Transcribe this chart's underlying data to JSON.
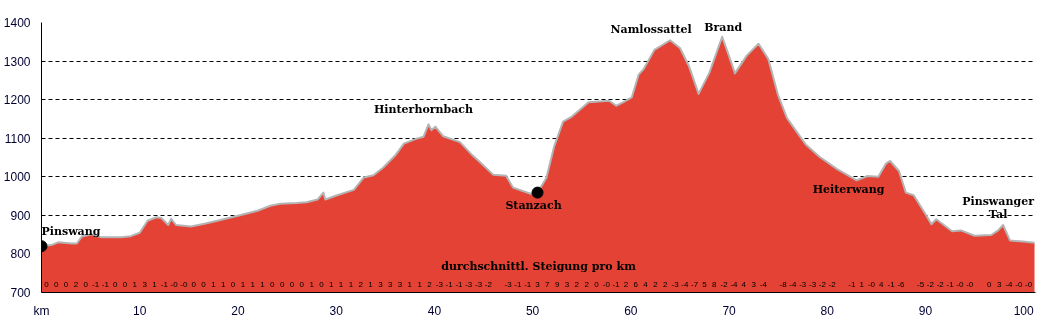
{
  "chart_data": {
    "type": "area",
    "xlim": [
      0,
      101.2
    ],
    "ylim": [
      700,
      1400
    ],
    "xticks": [
      {
        "value": 0,
        "label": "km"
      },
      10,
      20,
      30,
      40,
      50,
      60,
      70,
      80,
      90,
      100
    ],
    "yticks": [
      700,
      800,
      900,
      1000,
      1100,
      1200,
      1300,
      1400
    ],
    "grid": "y",
    "line_style": "solid",
    "series": [
      {
        "color": "#e34234",
        "x": [
          0,
          1.0,
          1.7,
          3.1,
          3.6,
          4.1,
          5.1,
          6.1,
          8.1,
          9.1,
          10.0,
          10.8,
          11.7,
          12.2,
          12.9,
          13.2,
          13.7,
          15.2,
          16.6,
          17.9,
          20.0,
          22.0,
          23.3,
          24.3,
          26.0,
          27.0,
          28.1,
          28.7,
          28.9,
          30.1,
          31.8,
          32.8,
          33.8,
          34.8,
          36.0,
          36.9,
          38.2,
          38.9,
          39.4,
          39.7,
          40.1,
          40.9,
          42.6,
          43.9,
          45.0,
          46.0,
          47.3,
          48.0,
          49.8,
          50.5,
          51.4,
          52.2,
          53.1,
          54.0,
          55.7,
          57.8,
          58.5,
          59.2,
          60.1,
          60.8,
          61.3,
          62.4,
          64.0,
          65.0,
          65.9,
          66.9,
          68.0,
          69.3,
          69.9,
          70.6,
          71.8,
          73.0,
          74.0,
          75.0,
          75.9,
          77.8,
          79.2,
          81.0,
          83.0,
          84.1,
          85.2,
          86.0,
          86.4,
          87.3,
          88.0,
          88.8,
          90.1,
          90.6,
          91.1,
          92.7,
          93.6,
          95.0,
          96.7,
          97.4,
          97.9,
          98.6,
          99.9,
          101.1
        ],
        "values": [
          820,
          823,
          830,
          827,
          827,
          845,
          851,
          843,
          843,
          846,
          855,
          886,
          895,
          893,
          875,
          891,
          875,
          871,
          878,
          886,
          899,
          912,
          925,
          930,
          932,
          934,
          941,
          959,
          941,
          952,
          966,
          998,
          1004,
          1024,
          1055,
          1086,
          1099,
          1104,
          1136,
          1121,
          1130,
          1105,
          1090,
          1055,
          1029,
          1005,
          1003,
          972,
          956,
          959,
          997,
          1079,
          1143,
          1156,
          1193,
          1197,
          1184,
          1193,
          1206,
          1265,
          1279,
          1329,
          1354,
          1334,
          1288,
          1215,
          1270,
          1363,
          1320,
          1268,
          1314,
          1345,
          1305,
          1211,
          1152,
          1084,
          1052,
          1020,
          991,
          1002,
          1000,
          1035,
          1041,
          1015,
          959,
          952,
          899,
          877,
          890,
          859,
          861,
          847,
          849,
          861,
          875,
          835,
          832,
          829
        ]
      },
      {
        "type": "scatter",
        "color": "#000000",
        "marker": "circle",
        "x": [
          0,
          50.5
        ],
        "values": [
          820,
          959
        ]
      }
    ],
    "annotations": [
      {
        "text": "Pinswang",
        "x": 0,
        "y": 820
      },
      {
        "text": "Hinterhornbach",
        "x": 39.4,
        "y": 1136
      },
      {
        "text": "Stanzach",
        "x": 50.5,
        "y": 959
      },
      {
        "text": "Namlossattel",
        "x": 64.0,
        "y": 1354
      },
      {
        "text": "Brand",
        "x": 69.3,
        "y": 1363
      },
      {
        "text": "Heiterwang",
        "x": 84.1,
        "y": 1002
      },
      {
        "text": "Pinswanger\nTal",
        "x": 97.9,
        "y": 875
      },
      "durchschnittl. Steigung pro km",
      "0 0 0 2 0 -1 -1 0 0 1 3 1 -1 -0 -0 0 0 1 1 0 1 1 1 0 0 0 0 1 0 1 1 1 2 1 3 3 3 1 1 2 -3 -1 -1 -3 -3 -2  -3 -1 -1 3 7 9 3 2 2 0 -0 -1 2 6 4 2 2 -3 -4 -7 5 8 -2 -4 4 3 -4  -8 -4 -3 -3 -2 -2  -1 1 -0 4 -1 -6  -5 -2 -2 -1 -0 -0  0 3 -4 -0 -0"
    ]
  }
}
